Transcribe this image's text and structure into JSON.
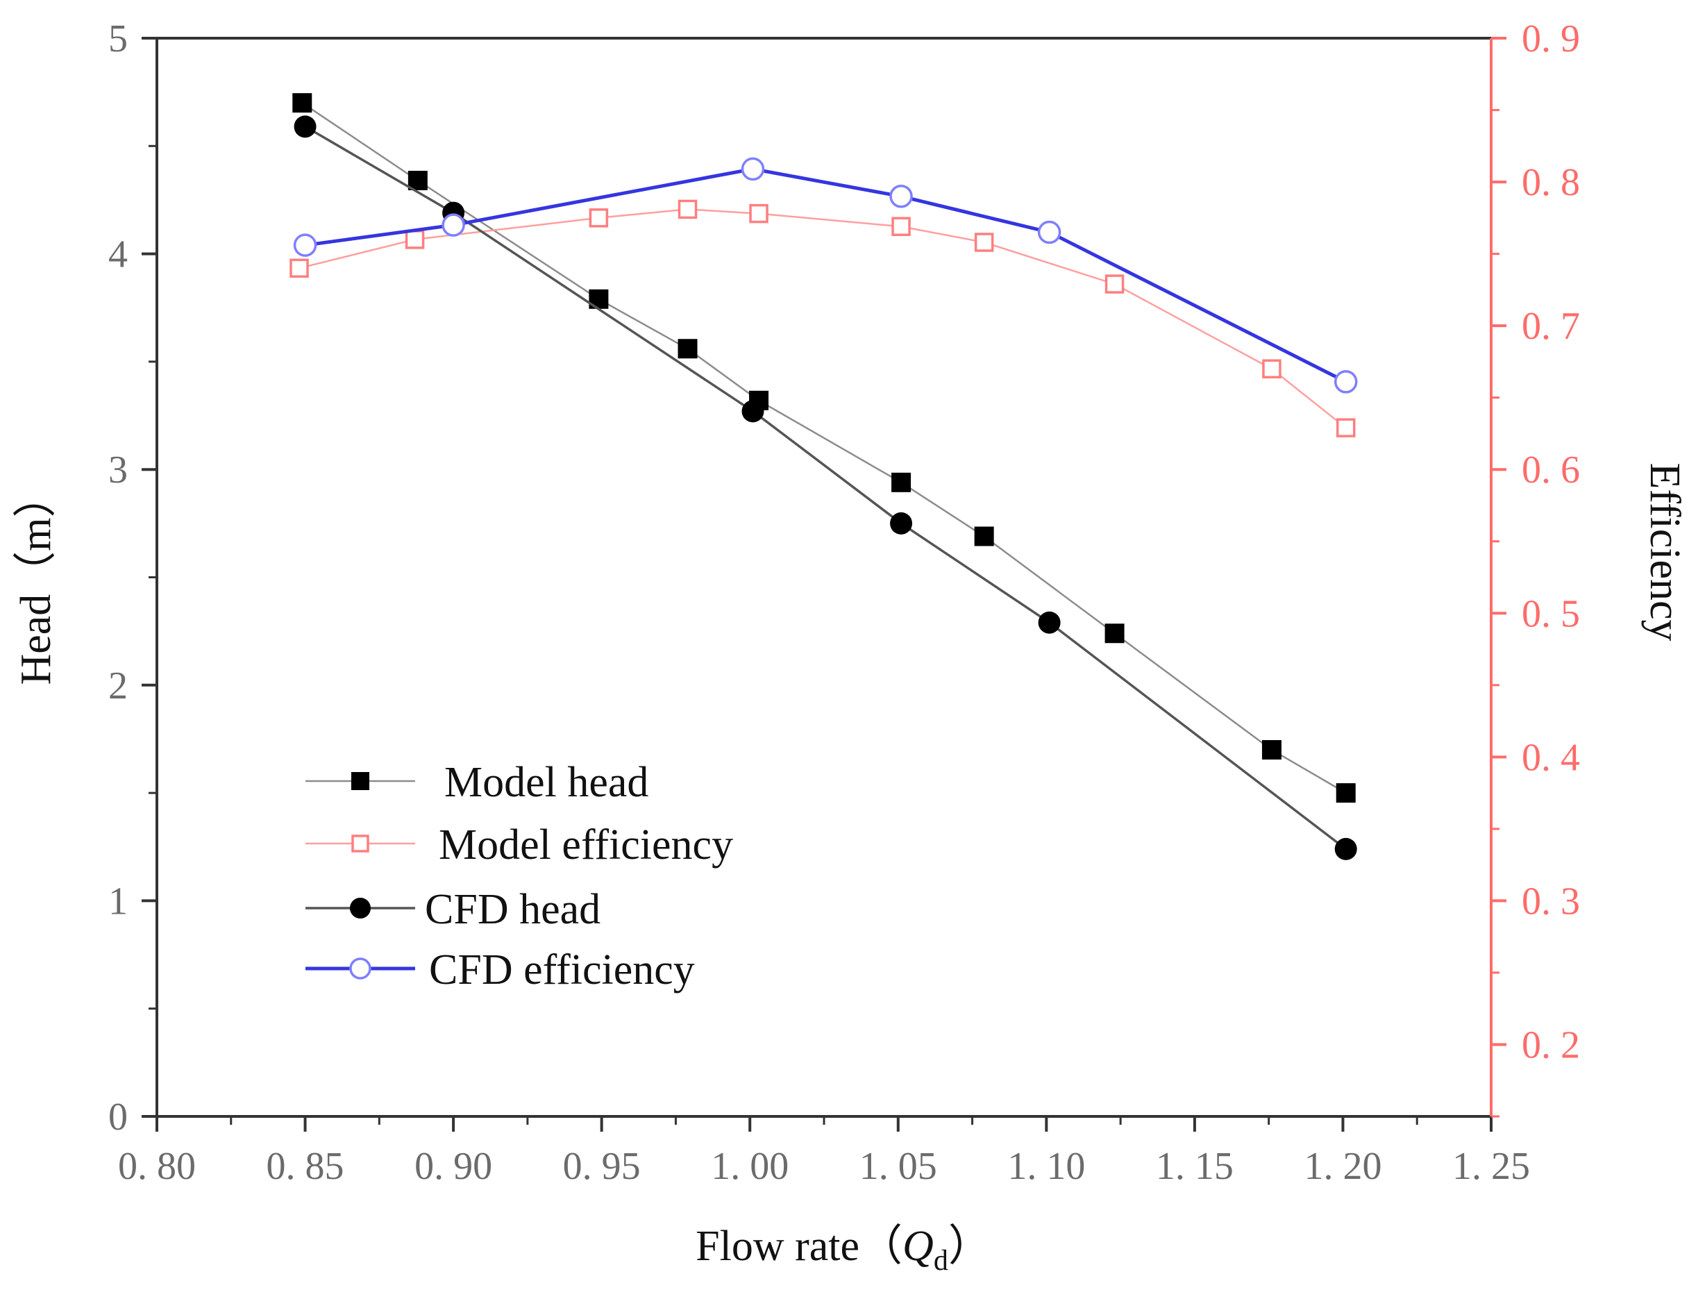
{
  "chart_data": {
    "type": "line",
    "xlabel": "Flow rate（",
    "xlabel_symbol": "Q",
    "xlabel_subscript": "d",
    "xlabel_close": "）",
    "ylabel": "Head（m）",
    "y2label": "Efficiency",
    "xlim": [
      0.8,
      1.25
    ],
    "ylim": [
      0,
      5
    ],
    "y2lim": [
      0.15,
      0.9
    ],
    "x_ticks": [
      "0. 80",
      "0. 85",
      "0. 90",
      "0. 95",
      "1. 00",
      "1. 05",
      "1. 10",
      "1. 15",
      "1. 20",
      "1. 25"
    ],
    "y_ticks": [
      "0",
      "1",
      "2",
      "3",
      "4",
      "5"
    ],
    "y2_ticks": [
      "0. 2",
      "0. 3",
      "0. 4",
      "0. 5",
      "0. 6",
      "0. 7",
      "0. 8",
      "0. 9"
    ],
    "grid": false,
    "legend_position": "lower-left",
    "colors": {
      "left_axis": "#333333",
      "right_axis": "#ff6b6b",
      "text": "#111111"
    },
    "series": [
      {
        "name": "Model head",
        "axis": "left",
        "marker": "filled-square",
        "color": "#000000",
        "line_color": "#8c8c8c",
        "x": [
          0.849,
          0.888,
          0.949,
          0.979,
          1.003,
          1.051,
          1.079,
          1.123,
          1.176,
          1.201
        ],
        "y": [
          4.7,
          4.34,
          3.79,
          3.56,
          3.32,
          2.94,
          2.69,
          2.24,
          1.7,
          1.5
        ]
      },
      {
        "name": "Model efficiency",
        "axis": "right",
        "marker": "open-square",
        "color": "#ff7f7f",
        "line_color": "#ff9f9f",
        "x": [
          0.848,
          0.887,
          0.949,
          0.979,
          1.003,
          1.051,
          1.079,
          1.123,
          1.176,
          1.201
        ],
        "y": [
          0.74,
          0.76,
          0.775,
          0.781,
          0.778,
          0.769,
          0.758,
          0.729,
          0.67,
          0.629
        ]
      },
      {
        "name": "CFD head",
        "axis": "left",
        "marker": "filled-circle",
        "color": "#000000",
        "line_color": "#555555",
        "x": [
          0.85,
          0.9,
          1.001,
          1.051,
          1.101,
          1.201
        ],
        "y": [
          4.59,
          4.19,
          3.27,
          2.75,
          2.29,
          1.24
        ]
      },
      {
        "name": "CFD efficiency",
        "axis": "right",
        "marker": "open-circle",
        "color": "#7f7fff",
        "line_color": "#3535e0",
        "x": [
          0.85,
          0.9,
          1.001,
          1.051,
          1.101,
          1.201
        ],
        "y": [
          0.756,
          0.77,
          0.809,
          0.79,
          0.765,
          0.661
        ]
      }
    ]
  }
}
